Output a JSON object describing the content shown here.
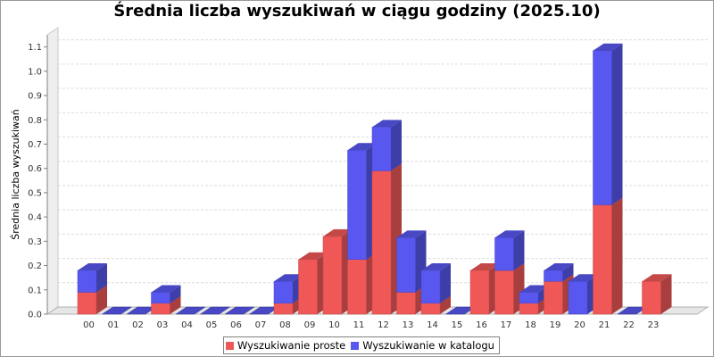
{
  "chart_data": {
    "type": "bar",
    "stacked": true,
    "three_d": true,
    "title": "Średnia liczba wyszukiwań w ciągu godziny (2025.10)",
    "ylabel": "Średnia liczba wyszukiwań",
    "xlabel": "",
    "ylim": [
      0,
      1.15
    ],
    "yticks": [
      "0.0",
      "0.1",
      "0.2",
      "0.3",
      "0.4",
      "0.5",
      "0.6",
      "0.7",
      "0.8",
      "0.9",
      "1.0",
      "1.1"
    ],
    "grid": true,
    "legend_position": "bottom",
    "categories": [
      "00",
      "01",
      "02",
      "03",
      "04",
      "05",
      "06",
      "07",
      "08",
      "09",
      "10",
      "11",
      "12",
      "13",
      "14",
      "15",
      "16",
      "17",
      "18",
      "19",
      "20",
      "21",
      "22",
      "23"
    ],
    "series": [
      {
        "name": "Wyszukiwanie proste",
        "color": "#f05858",
        "values": [
          0.09,
          0,
          0,
          0.045,
          0,
          0,
          0,
          0,
          0.045,
          0.225,
          0.32,
          0.225,
          0.59,
          0.09,
          0.045,
          0,
          0.18,
          0.18,
          0.045,
          0.135,
          0,
          0.45,
          0,
          0.135
        ]
      },
      {
        "name": "Wyszukiwanie w katalogu",
        "color": "#5858f0",
        "values": [
          0.09,
          0,
          0,
          0.045,
          0,
          0,
          0,
          0,
          0.09,
          0,
          0,
          0.45,
          0.18,
          0.225,
          0.135,
          0,
          0,
          0.135,
          0.045,
          0.045,
          0.135,
          0.635,
          0,
          0
        ]
      }
    ]
  }
}
